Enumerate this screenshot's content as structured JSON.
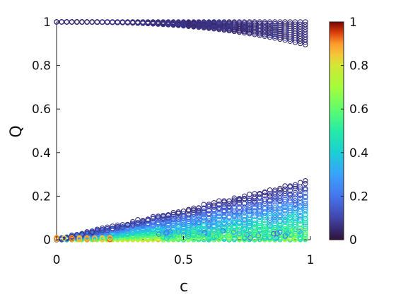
{
  "chart_data": {
    "type": "scatter",
    "title": "",
    "xlabel": "c",
    "ylabel": "Q",
    "xlim": [
      0,
      1
    ],
    "ylim": [
      0,
      1
    ],
    "x_ticks": [
      "0",
      "0.5",
      "1"
    ],
    "y_ticks": [
      "0",
      "0.2",
      "0.4",
      "0.6",
      "0.8",
      "1"
    ],
    "grid": false,
    "marker": "open-circle",
    "colormap": "turbo",
    "colorbar": {
      "range": [
        0,
        1
      ],
      "ticks": [
        "0",
        "0.2",
        "0.4",
        "0.6",
        "0.8",
        "1"
      ],
      "position": "right"
    },
    "c_values": [
      0.0,
      0.02,
      0.04,
      0.06,
      0.08,
      0.1,
      0.12,
      0.14,
      0.16,
      0.18,
      0.2,
      0.22,
      0.24,
      0.26,
      0.28,
      0.3,
      0.32,
      0.34,
      0.36,
      0.38,
      0.4,
      0.42,
      0.44,
      0.46,
      0.48,
      0.5,
      0.52,
      0.54,
      0.56,
      0.58,
      0.6,
      0.62,
      0.64,
      0.66,
      0.68,
      0.7,
      0.72,
      0.74,
      0.76,
      0.78,
      0.8,
      0.82,
      0.84,
      0.86,
      0.88,
      0.9,
      0.92,
      0.94,
      0.96,
      0.98
    ],
    "upper_branch": {
      "description_color_value": 0.04,
      "q_at_c1_min": 0.89,
      "q_at_c1_max": 1.0
    },
    "lower_branch": {
      "q_max_at_c": [
        [
          0.0,
          0.0
        ],
        [
          0.2,
          0.04
        ],
        [
          0.4,
          0.08
        ],
        [
          0.6,
          0.15
        ],
        [
          0.8,
          0.22
        ],
        [
          0.98,
          0.265
        ]
      ]
    }
  }
}
